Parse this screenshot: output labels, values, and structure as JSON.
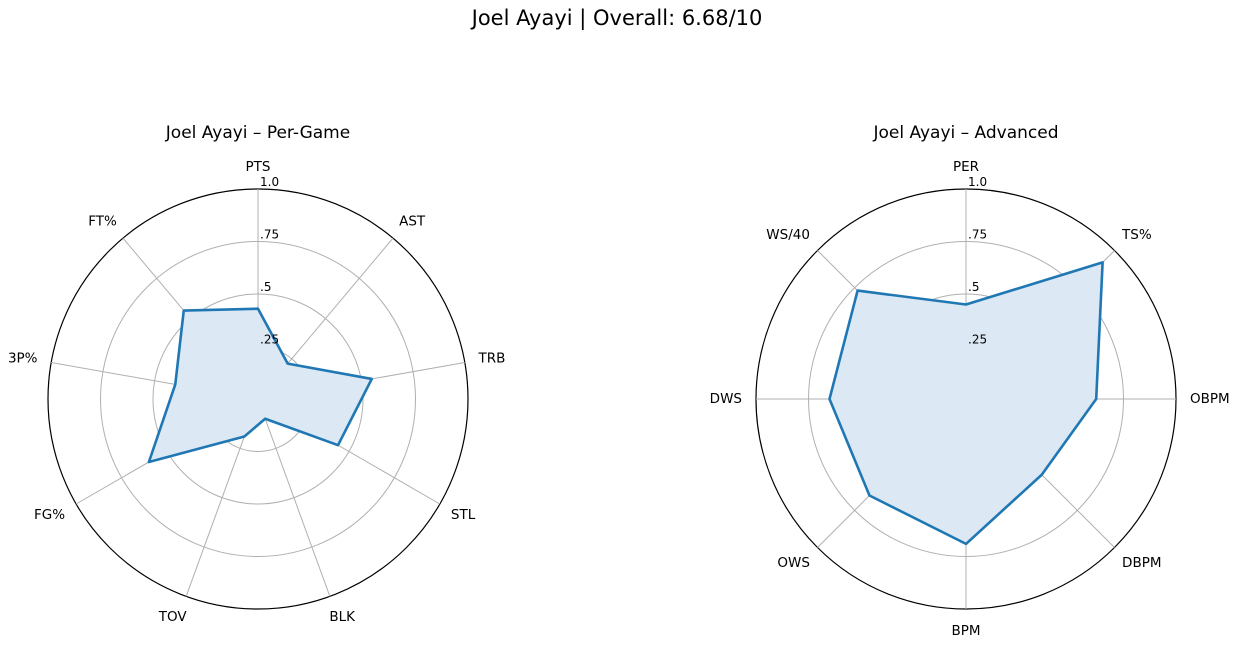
{
  "suptitle": "Joel Ayayi | Overall: 6.68/10",
  "chart_data": [
    {
      "type": "radar",
      "title": "Joel Ayayi – Per-Game",
      "categories": [
        "PTS",
        "AST",
        "TRB",
        "STL",
        "BLK",
        "TOV",
        "FG%",
        "3P%",
        "FT%"
      ],
      "values": [
        0.43,
        0.22,
        0.55,
        0.44,
        0.1,
        0.19,
        0.6,
        0.4,
        0.55
      ],
      "rlim": [
        0,
        1
      ],
      "rticks": [
        0.25,
        0.5,
        0.75,
        1.0
      ],
      "rtick_labels": [
        ".25",
        ".5",
        ".75",
        "1.0"
      ],
      "line_color": "#1f77b4",
      "fill_color": "#dce8f3",
      "grid": true
    },
    {
      "type": "radar",
      "title": "Joel Ayayi – Advanced",
      "categories": [
        "PER",
        "TS%",
        "OBPM",
        "DBPM",
        "BPM",
        "OWS",
        "DWS",
        "WS/40"
      ],
      "values": [
        0.45,
        0.92,
        0.62,
        0.51,
        0.69,
        0.65,
        0.65,
        0.73
      ],
      "rlim": [
        0,
        1
      ],
      "rticks": [
        0.25,
        0.5,
        0.75,
        1.0
      ],
      "rtick_labels": [
        ".25",
        ".5",
        ".75",
        "1.0"
      ],
      "line_color": "#1f77b4",
      "fill_color": "#dce8f3",
      "grid": true
    }
  ]
}
